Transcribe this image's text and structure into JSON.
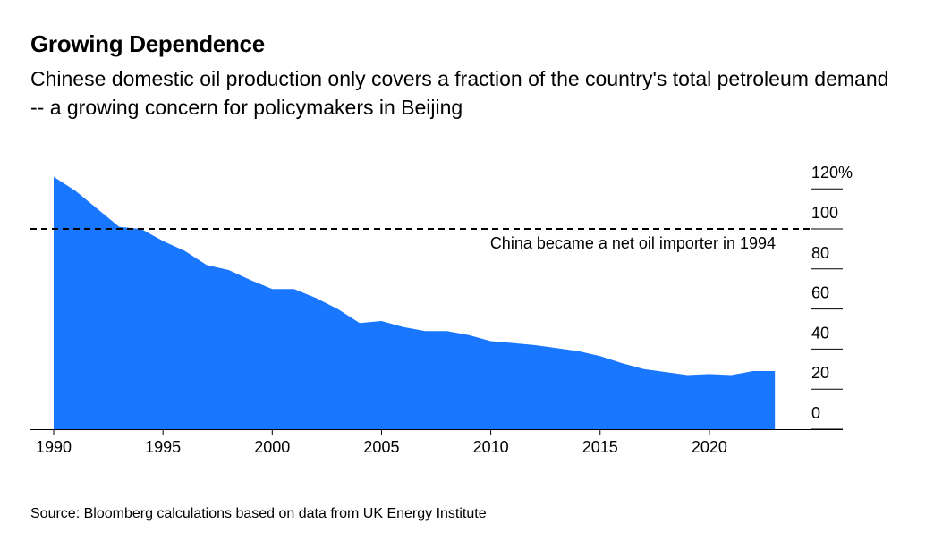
{
  "chart_data": {
    "type": "area",
    "title": "Growing Dependence",
    "subtitle": "Chinese domestic oil production only covers a fraction of the country's total petroleum demand -- a growing concern for policymakers in Beijing",
    "source": "Source: Bloomberg calculations based on data from UK Energy Institute",
    "color": "#1976ff",
    "x": [
      1990,
      1991,
      1992,
      1993,
      1994,
      1995,
      1996,
      1997,
      1998,
      1999,
      2000,
      2001,
      2002,
      2003,
      2004,
      2005,
      2006,
      2007,
      2008,
      2009,
      2010,
      2011,
      2012,
      2013,
      2014,
      2015,
      2016,
      2017,
      2018,
      2019,
      2020,
      2021,
      2022,
      2023
    ],
    "values": [
      126,
      119,
      110,
      101,
      100,
      94,
      89,
      82,
      79.5,
      74.5,
      70,
      70,
      65.5,
      60,
      53,
      54,
      51,
      49,
      49,
      47,
      44,
      43,
      42,
      40.5,
      39,
      36.5,
      33,
      30,
      28.5,
      27,
      27.5,
      27,
      29,
      29
    ],
    "xlim": [
      1989,
      2026
    ],
    "ylim": [
      0,
      120
    ],
    "xticks": [
      "1990",
      "1995",
      "2000",
      "2005",
      "2010",
      "2015",
      "2020"
    ],
    "yticks": [
      "120%",
      "100",
      "80",
      "60",
      "40",
      "20",
      "0"
    ],
    "reference_line": {
      "value": 100,
      "label": "China became a net oil importer in 1994"
    }
  }
}
